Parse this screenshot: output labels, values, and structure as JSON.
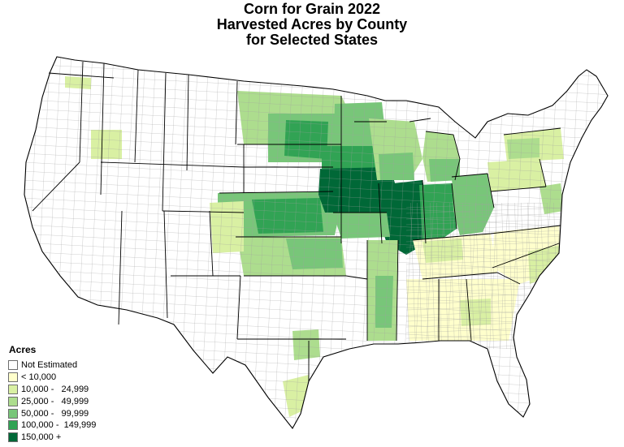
{
  "title": {
    "lines": [
      "Corn for Grain 2022",
      "Harvested Acres by County",
      "for Selected States"
    ]
  },
  "legend": {
    "title": "Acres",
    "classes": [
      {
        "label": "Not Estimated",
        "color": "#ffffff"
      },
      {
        "label": "< 10,000",
        "color": "#ffffcc"
      },
      {
        "label": "10,000 -   24,999",
        "color": "#d9f0a3"
      },
      {
        "label": "25,000 -   49,999",
        "color": "#addd8e"
      },
      {
        "label": "50,000 -   99,999",
        "color": "#78c679"
      },
      {
        "label": "100,000 -  149,999",
        "color": "#31a354"
      },
      {
        "label": "150,000 +",
        "color": "#006837"
      }
    ]
  },
  "colors": {
    "county_border": "#9a9a9a",
    "state_border": "#000000"
  }
}
